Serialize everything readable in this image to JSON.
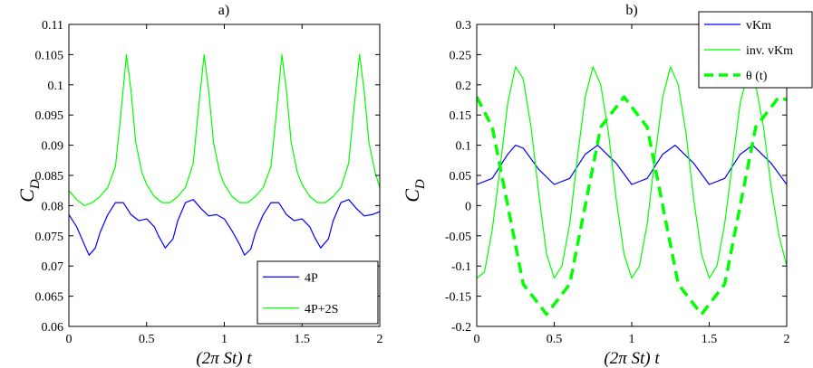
{
  "chart_data": [
    {
      "type": "line",
      "panel_label": "a)",
      "xlabel": "(2π St) t",
      "ylabel": "C_D",
      "xlim": [
        0,
        2
      ],
      "ylim": [
        0.06,
        0.11
      ],
      "xticks": [
        "0",
        "0.5",
        "1",
        "1.5",
        "2"
      ],
      "yticks": [
        "0.06",
        "0.065",
        "0.07",
        "0.075",
        "0.08",
        "0.085",
        "0.09",
        "0.095",
        "0.1",
        "0.105",
        "0.11"
      ],
      "legend_position": "bottom-right",
      "grid": false,
      "series": [
        {
          "name": "4P",
          "color": "#0000ff",
          "x": [
            0,
            0.05,
            0.1,
            0.13,
            0.17,
            0.2,
            0.25,
            0.3,
            0.35,
            0.4,
            0.45,
            0.5,
            0.55,
            0.58,
            0.62,
            0.67,
            0.7,
            0.75,
            0.8,
            0.85,
            0.9,
            0.95,
            1.0,
            1.05,
            1.1,
            1.13,
            1.17,
            1.2,
            1.25,
            1.3,
            1.35,
            1.4,
            1.45,
            1.5,
            1.55,
            1.58,
            1.62,
            1.67,
            1.7,
            1.75,
            1.8,
            1.85,
            1.9,
            1.95,
            2.0
          ],
          "y": [
            0.0785,
            0.0765,
            0.0735,
            0.0718,
            0.073,
            0.0755,
            0.0785,
            0.0805,
            0.0805,
            0.0785,
            0.0775,
            0.0778,
            0.0765,
            0.0748,
            0.073,
            0.0745,
            0.0775,
            0.0805,
            0.081,
            0.0795,
            0.0783,
            0.0785,
            0.0778,
            0.0758,
            0.0735,
            0.0718,
            0.0728,
            0.0755,
            0.0785,
            0.0805,
            0.0805,
            0.0785,
            0.0775,
            0.0778,
            0.0765,
            0.0748,
            0.073,
            0.0745,
            0.0775,
            0.0805,
            0.081,
            0.0795,
            0.0783,
            0.0785,
            0.079
          ]
        },
        {
          "name": "4P+2S",
          "color": "#00ff00",
          "x": [
            0,
            0.05,
            0.1,
            0.15,
            0.2,
            0.25,
            0.3,
            0.33,
            0.37,
            0.4,
            0.43,
            0.47,
            0.5,
            0.55,
            0.6,
            0.65,
            0.7,
            0.75,
            0.8,
            0.83,
            0.87,
            0.9,
            0.93,
            0.97,
            1.0,
            1.05,
            1.1,
            1.15,
            1.2,
            1.25,
            1.3,
            1.33,
            1.37,
            1.4,
            1.43,
            1.47,
            1.5,
            1.55,
            1.6,
            1.65,
            1.7,
            1.75,
            1.8,
            1.83,
            1.87,
            1.9,
            1.93,
            1.97,
            2.0
          ],
          "y": [
            0.0825,
            0.081,
            0.08,
            0.0805,
            0.0815,
            0.083,
            0.0865,
            0.094,
            0.105,
            0.099,
            0.0905,
            0.0855,
            0.0835,
            0.0815,
            0.0805,
            0.0805,
            0.0815,
            0.083,
            0.087,
            0.095,
            0.105,
            0.099,
            0.0905,
            0.0855,
            0.0835,
            0.0815,
            0.0805,
            0.0805,
            0.0815,
            0.083,
            0.0865,
            0.094,
            0.105,
            0.099,
            0.0905,
            0.0855,
            0.0835,
            0.0815,
            0.0805,
            0.0805,
            0.0815,
            0.083,
            0.087,
            0.095,
            0.105,
            0.099,
            0.0905,
            0.0855,
            0.083
          ]
        }
      ]
    },
    {
      "type": "line",
      "panel_label": "b)",
      "xlabel": "(2π St) t",
      "ylabel": "C_D",
      "xlim": [
        0,
        2
      ],
      "ylim": [
        -0.2,
        0.3
      ],
      "xticks": [
        "0",
        "0.5",
        "1",
        "1.5",
        "2"
      ],
      "yticks": [
        "-0.2",
        "-0.15",
        "-0.1",
        "-0.05",
        "0",
        "0.05",
        "0.1",
        "0.15",
        "0.2",
        "0.25",
        "0.3"
      ],
      "legend_position": "top-right",
      "grid": false,
      "series": [
        {
          "name": "vKm",
          "color": "#0000ff",
          "style": "solid",
          "x": [
            0,
            0.1,
            0.2,
            0.25,
            0.3,
            0.4,
            0.5,
            0.6,
            0.7,
            0.78,
            0.9,
            1.0,
            1.1,
            1.2,
            1.28,
            1.4,
            1.5,
            1.6,
            1.7,
            1.78,
            1.9,
            2.0
          ],
          "y": [
            0.035,
            0.045,
            0.085,
            0.1,
            0.095,
            0.06,
            0.035,
            0.045,
            0.085,
            0.1,
            0.07,
            0.035,
            0.045,
            0.085,
            0.1,
            0.07,
            0.035,
            0.045,
            0.085,
            0.1,
            0.07,
            0.035
          ]
        },
        {
          "name": "inv. vKm",
          "color": "#00ff00",
          "style": "solid",
          "x": [
            0,
            0.05,
            0.1,
            0.15,
            0.2,
            0.25,
            0.3,
            0.35,
            0.4,
            0.45,
            0.5,
            0.55,
            0.6,
            0.65,
            0.7,
            0.75,
            0.8,
            0.85,
            0.9,
            0.95,
            1.0,
            1.05,
            1.1,
            1.15,
            1.2,
            1.25,
            1.3,
            1.35,
            1.4,
            1.45,
            1.5,
            1.55,
            1.6,
            1.65,
            1.7,
            1.75,
            1.8,
            1.85,
            1.9,
            1.95,
            2.0
          ],
          "y": [
            -0.12,
            -0.11,
            -0.04,
            0.06,
            0.17,
            0.23,
            0.21,
            0.13,
            0.02,
            -0.08,
            -0.12,
            -0.1,
            -0.03,
            0.08,
            0.18,
            0.23,
            0.2,
            0.12,
            0.01,
            -0.08,
            -0.12,
            -0.1,
            -0.03,
            0.08,
            0.18,
            0.23,
            0.2,
            0.12,
            0.01,
            -0.08,
            -0.12,
            -0.1,
            -0.03,
            0.07,
            0.17,
            0.22,
            0.2,
            0.13,
            0.03,
            -0.05,
            -0.1
          ]
        },
        {
          "name": "θ (t)",
          "color": "#00ff00",
          "style": "dashed",
          "x": [
            0,
            0.1,
            0.2,
            0.3,
            0.45,
            0.6,
            0.7,
            0.8,
            0.95,
            1.1,
            1.2,
            1.3,
            1.45,
            1.6,
            1.7,
            1.8,
            1.95,
            2.0
          ],
          "y": [
            0.18,
            0.13,
            0.0,
            -0.13,
            -0.18,
            -0.13,
            0.0,
            0.13,
            0.18,
            0.13,
            0.0,
            -0.13,
            -0.18,
            -0.13,
            0.0,
            0.13,
            0.18,
            0.175
          ]
        }
      ]
    }
  ]
}
